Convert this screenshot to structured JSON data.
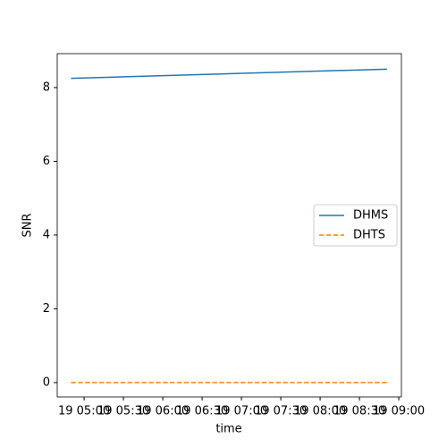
{
  "chart_data": {
    "type": "line",
    "x_label": "time",
    "y_label": "SNR",
    "x": [
      290,
      531
    ],
    "series": [
      {
        "name": "DHMS",
        "color": "#1f77b4",
        "dash": "solid",
        "values": [
          8.25,
          8.5
        ]
      },
      {
        "name": "DHTS",
        "color": "#ff7f0e",
        "dash": "dashed",
        "values": [
          0,
          0
        ]
      }
    ],
    "xlim": [
      279.5,
      542
    ],
    "xticks": [
      {
        "value": 300,
        "label": "19 05:00"
      },
      {
        "value": 330,
        "label": "19 05:30"
      },
      {
        "value": 360,
        "label": "19 06:00"
      },
      {
        "value": 390,
        "label": "19 06:30"
      },
      {
        "value": 420,
        "label": "19 07:00"
      },
      {
        "value": 450,
        "label": "19 07:30"
      },
      {
        "value": 480,
        "label": "19 08:00"
      },
      {
        "value": 510,
        "label": "19 08:30"
      },
      {
        "value": 540,
        "label": "19 09:00"
      }
    ],
    "ylim": [
      -0.39,
      8.92
    ],
    "yticks": [
      0,
      2,
      4,
      6,
      8
    ],
    "grid": false,
    "legend": "center right"
  }
}
